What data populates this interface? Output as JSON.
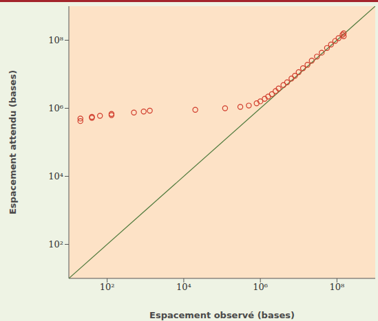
{
  "chart_data": {
    "type": "scatter",
    "x_label": "Espacement observé (bases)",
    "y_label": "Espacement attendu (bases)",
    "log": true,
    "grid": false,
    "marker": "o",
    "color": "#d03a2a",
    "x": [
      20,
      20,
      40,
      40,
      65,
      130,
      130,
      500,
      900,
      1300,
      20000,
      120000,
      300000,
      500000,
      800000,
      1000000,
      1300000,
      1600000,
      2000000,
      2500000,
      3000000,
      4000000,
      5000000,
      6500000,
      8000000,
      10000000,
      13000000,
      17000000,
      22000000,
      30000000,
      40000000,
      55000000,
      70000000,
      90000000,
      110000000,
      140000000,
      150000000,
      150000000
    ],
    "values": [
      420000,
      500000,
      520000,
      560000,
      600000,
      630000,
      680000,
      750000,
      800000,
      850000,
      900000,
      1000000,
      1100000,
      1200000,
      1400000,
      1600000,
      1900000,
      2200000,
      2600000,
      3200000,
      3800000,
      4800000,
      5800000,
      7500000,
      9000000,
      11500000,
      15000000,
      19000000,
      25000000,
      33000000,
      43000000,
      59000000,
      75000000,
      95000000,
      115000000,
      145000000,
      160000000,
      130000000
    ],
    "reference_line": {
      "x": [
        10,
        1000000000
      ],
      "y": [
        10,
        1000000000
      ],
      "color": "#4f7a3c"
    },
    "xlim": [
      10,
      1000000000
    ],
    "ylim": [
      10,
      1000000000
    ],
    "xticks": [
      {
        "value": 100,
        "label": "10²"
      },
      {
        "value": 10000,
        "label": "10⁴"
      },
      {
        "value": 1000000,
        "label": "10⁶"
      },
      {
        "value": 100000000,
        "label": "10⁸"
      }
    ],
    "yticks": [
      {
        "value": 100,
        "label": "10²"
      },
      {
        "value": 10000,
        "label": "10⁴"
      },
      {
        "value": 1000000,
        "label": "10⁶"
      },
      {
        "value": 100000000,
        "label": "10⁸"
      }
    ]
  }
}
